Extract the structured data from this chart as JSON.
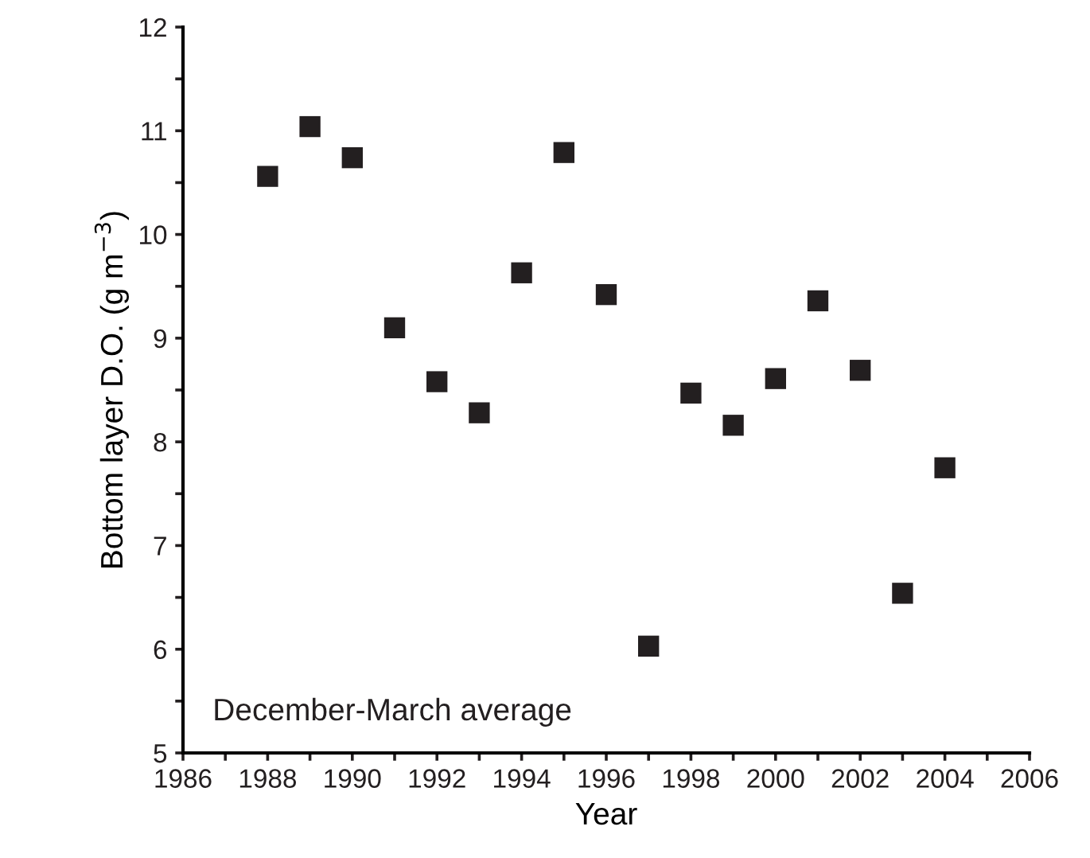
{
  "chart_data": {
    "type": "scatter",
    "xlabel": "Year",
    "ylabel": "Bottom layer D.O. (g m$^{−3}$)",
    "annotations": [
      "December-March average"
    ],
    "marker": "square",
    "x": [
      1988,
      1989,
      1990,
      1991,
      1992,
      1993,
      1994,
      1995,
      1996,
      1997,
      1998,
      1999,
      2000,
      2001,
      2002,
      2003,
      2004
    ],
    "series": [
      {
        "color": "#231f20",
        "values": [
          10.56,
          11.04,
          10.74,
          9.1,
          8.58,
          8.28,
          9.63,
          10.79,
          9.42,
          6.03,
          8.47,
          8.16,
          8.61,
          9.36,
          8.69,
          6.54,
          7.75
        ]
      }
    ],
    "xlim": [
      1986,
      2006
    ],
    "ylim": [
      5,
      12
    ],
    "xticks": [
      1986,
      {
        "value": 1987,
        "label": null
      },
      1988,
      {
        "value": 1989,
        "label": null
      },
      1990,
      {
        "value": 1991,
        "label": null
      },
      1992,
      {
        "value": 1993,
        "label": null
      },
      1994,
      {
        "value": 1995,
        "label": null
      },
      1996,
      {
        "value": 1997,
        "label": null
      },
      1998,
      {
        "value": 1999,
        "label": null
      },
      2000,
      {
        "value": 2001,
        "label": null
      },
      2002,
      {
        "value": 2003,
        "label": null
      },
      2004,
      {
        "value": 2005,
        "label": null
      },
      2006
    ],
    "yticks": [
      5,
      {
        "value": 5.5,
        "label": null
      },
      6,
      {
        "value": 6.5,
        "label": null
      },
      7,
      {
        "value": 7.5,
        "label": null
      },
      8,
      {
        "value": 8.5,
        "label": null
      },
      9,
      {
        "value": 9.5,
        "label": null
      },
      10,
      {
        "value": 10.5,
        "label": null
      },
      11,
      {
        "value": 11.5,
        "label": null
      },
      12
    ]
  }
}
